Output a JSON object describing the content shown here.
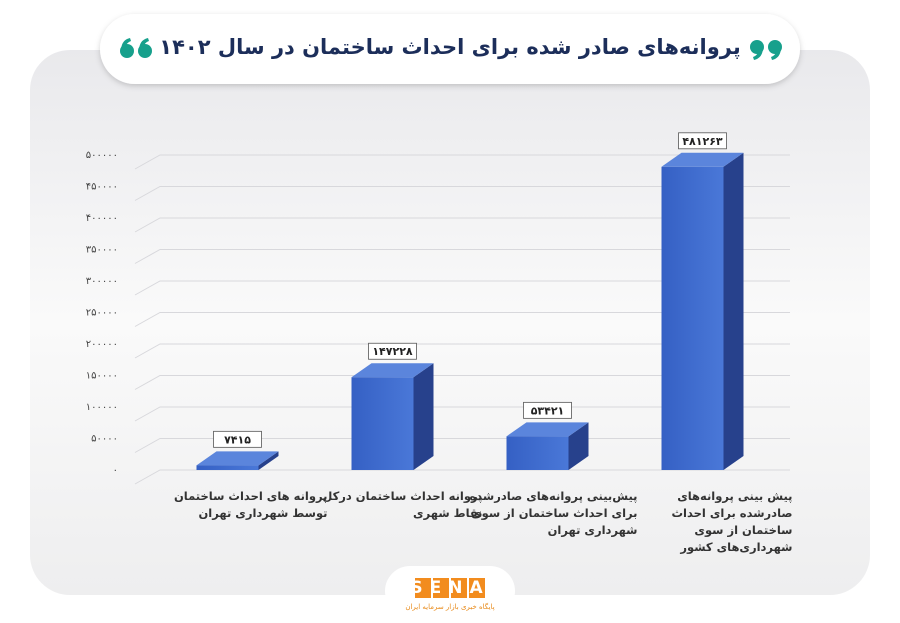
{
  "chart_data": {
    "type": "bar3d",
    "title": "پروانه‌های صادر شده برای احداث ساختمان در سال ۱۴۰۲",
    "categories": [
      "پروانه های احداث ساختمان توسط شهرداری تهران",
      "پروانه احداث ساختمان درکل نقاط شهری",
      "پیش‌بینی پروانه‌های صادرشده برای احداث ساختمان از سوی شهرداری تهران",
      "پیش بینی پروانه‌های صادرشده برای احداث ساختمان از سوی شهرداری‌های کشور"
    ],
    "values": [
      7415,
      147228,
      53421,
      481263
    ],
    "value_labels": [
      "۷۴۱۵",
      "۱۴۷۲۲۸",
      "۵۳۴۲۱",
      "۴۸۱۲۶۳"
    ],
    "color": "#3c67c8",
    "ylim": [
      0,
      500000
    ],
    "yticks": [
      {
        "value": 0,
        "label": "۰"
      },
      {
        "value": 50000,
        "label": "۵۰۰۰۰"
      },
      {
        "value": 100000,
        "label": "۱۰۰۰۰۰"
      },
      {
        "value": 150000,
        "label": "۱۵۰۰۰۰"
      },
      {
        "value": 200000,
        "label": "۲۰۰۰۰۰"
      },
      {
        "value": 250000,
        "label": "۲۵۰۰۰۰"
      },
      {
        "value": 300000,
        "label": "۳۰۰۰۰۰"
      },
      {
        "value": 350000,
        "label": "۳۵۰۰۰۰"
      },
      {
        "value": 400000,
        "label": "۴۰۰۰۰۰"
      },
      {
        "value": 450000,
        "label": "۴۵۰۰۰۰"
      },
      {
        "value": 500000,
        "label": "۵۰۰۰۰۰"
      }
    ],
    "grid": true,
    "logo": "SENA",
    "logo_subtitle": "پایگاه خبری بازار سرمایه ایران"
  }
}
